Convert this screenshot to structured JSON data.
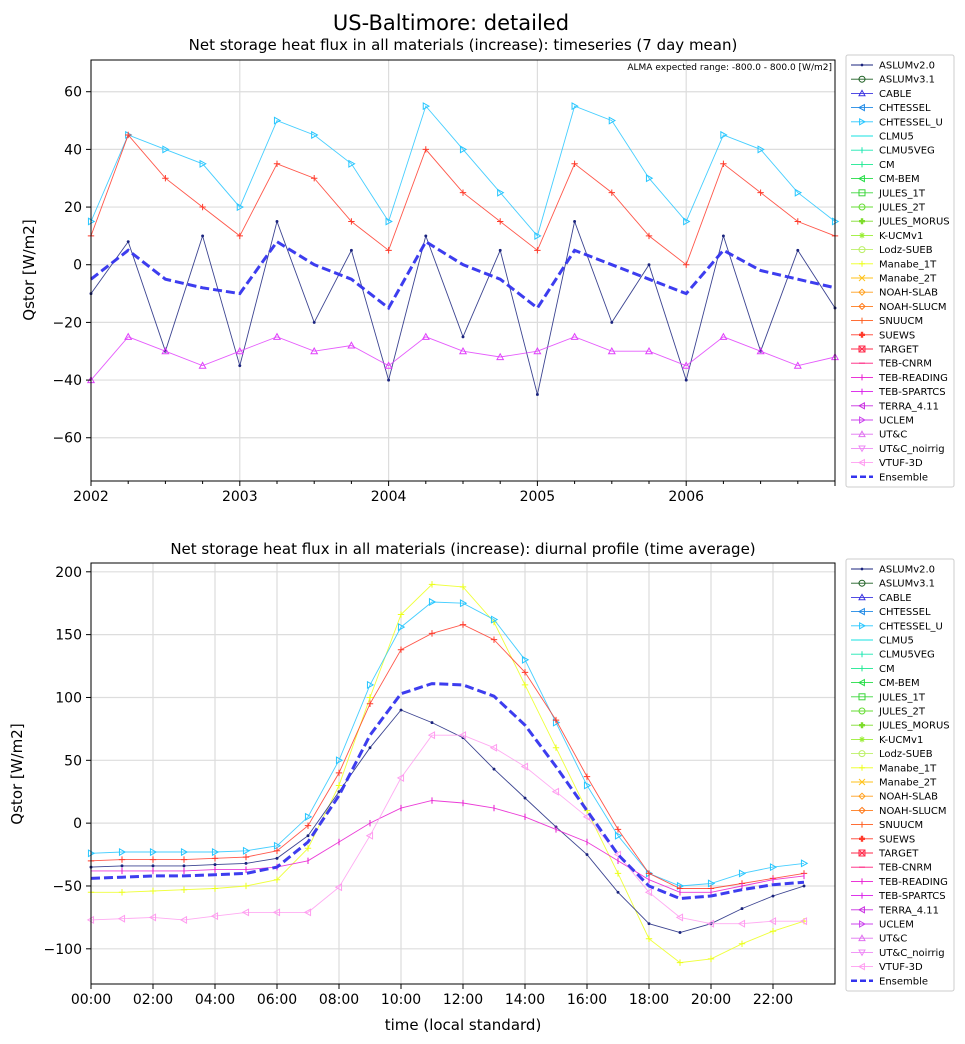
{
  "figure": {
    "title": "US-Baltimore: detailed"
  },
  "chart_data": [
    {
      "type": "line",
      "title": "Net storage heat flux in all materials (increase): timeseries (7 day mean)",
      "annotation": "ALMA expected range: -800.0 - 800.0 [W/m2]",
      "xlabel": "",
      "ylabel": "Qstor [W/m2]",
      "x_ticks": [
        "2002",
        "2003",
        "2004",
        "2005",
        "2006"
      ],
      "xlim": [
        2002.0,
        2007.0
      ],
      "y_ticks": [
        -60,
        -40,
        -20,
        0,
        20,
        40,
        60
      ],
      "ylim": [
        -75,
        71
      ],
      "grid": true,
      "legend_position": "right-outside",
      "note": "approximate envelope readings of dense 7-day mean series",
      "x": [
        2002.0,
        2002.25,
        2002.5,
        2002.75,
        2003.0,
        2003.25,
        2003.5,
        2003.75,
        2004.0,
        2004.25,
        2004.5,
        2004.75,
        2005.0,
        2005.25,
        2005.5,
        2005.75,
        2006.0,
        2006.25,
        2006.5,
        2006.75,
        2007.0
      ],
      "series": [
        {
          "name": "ASLUMv2.0",
          "color": "#1a237e",
          "marker": "dot",
          "values": [
            -10,
            8,
            -30,
            10,
            -35,
            15,
            -20,
            5,
            -40,
            10,
            -25,
            5,
            -45,
            15,
            -20,
            0,
            -40,
            10,
            -30,
            5,
            -15
          ]
        },
        {
          "name": "CHTESSEL_U",
          "color": "#26c6ff",
          "marker": "tri-right",
          "values": [
            15,
            45,
            40,
            35,
            20,
            50,
            45,
            35,
            15,
            55,
            40,
            25,
            10,
            55,
            50,
            30,
            15,
            45,
            40,
            25,
            15
          ]
        },
        {
          "name": "SUEWS",
          "color": "#ff3a2a",
          "marker": "plus",
          "values": [
            10,
            45,
            30,
            20,
            10,
            35,
            30,
            15,
            5,
            40,
            25,
            15,
            5,
            35,
            25,
            10,
            0,
            35,
            25,
            15,
            10
          ]
        },
        {
          "name": "UT&C",
          "color": "#e040fb",
          "marker": "tri-up",
          "values": [
            -40,
            -25,
            -30,
            -35,
            -30,
            -25,
            -30,
            -28,
            -35,
            -25,
            -30,
            -32,
            -30,
            -25,
            -30,
            -30,
            -35,
            -25,
            -30,
            -35,
            -32
          ]
        },
        {
          "name": "Ensemble",
          "color": "#3333ee",
          "marker": "none",
          "values": [
            -5,
            5,
            -5,
            -8,
            -10,
            8,
            0,
            -5,
            -15,
            8,
            0,
            -5,
            -15,
            5,
            0,
            -5,
            -10,
            5,
            -2,
            -5,
            -8
          ]
        }
      ]
    },
    {
      "type": "line",
      "title": "Net storage heat flux in all materials (increase): diurnal profile (time average)",
      "xlabel": "time (local standard)",
      "ylabel": "Qstor [W/m2]",
      "x_ticks": [
        "00:00",
        "02:00",
        "04:00",
        "06:00",
        "08:00",
        "10:00",
        "12:00",
        "14:00",
        "16:00",
        "18:00",
        "20:00",
        "22:00"
      ],
      "xlim": [
        0,
        24
      ],
      "y_ticks": [
        -100,
        -50,
        0,
        50,
        100,
        150,
        200
      ],
      "ylim": [
        -128,
        207
      ],
      "grid": true,
      "legend_position": "right-outside",
      "x": [
        0,
        1,
        2,
        3,
        4,
        5,
        6,
        7,
        8,
        9,
        10,
        11,
        12,
        13,
        14,
        15,
        16,
        17,
        18,
        19,
        20,
        21,
        22,
        23
      ],
      "series": [
        {
          "name": "Manabe_1T",
          "color": "#ecff1a",
          "marker": "plus",
          "values": [
            -55,
            -55,
            -54,
            -53,
            -52,
            -50,
            -45,
            -20,
            30,
            100,
            166,
            190,
            188,
            160,
            110,
            60,
            10,
            -40,
            -92,
            -111,
            -108,
            -96,
            -86,
            -78
          ]
        },
        {
          "name": "CHTESSEL_U",
          "color": "#26c6ff",
          "marker": "tri-right",
          "values": [
            -24,
            -23,
            -23,
            -23,
            -23,
            -22,
            -18,
            5,
            50,
            110,
            156,
            176,
            175,
            162,
            130,
            80,
            30,
            -10,
            -40,
            -50,
            -48,
            -40,
            -35,
            -32
          ]
        },
        {
          "name": "SUEWS",
          "color": "#ff3a2a",
          "marker": "plus",
          "values": [
            -30,
            -29,
            -29,
            -29,
            -28,
            -27,
            -22,
            -2,
            40,
            95,
            138,
            151,
            158,
            146,
            120,
            82,
            37,
            -5,
            -40,
            -52,
            -52,
            -48,
            -44,
            -40
          ]
        },
        {
          "name": "ASLUMv2.0",
          "color": "#1a237e",
          "marker": "dot",
          "values": [
            -35,
            -34,
            -34,
            -34,
            -33,
            -32,
            -28,
            -10,
            25,
            60,
            90,
            80,
            68,
            43,
            20,
            -3,
            -25,
            -55,
            -80,
            -87,
            -80,
            -68,
            -58,
            -50
          ]
        },
        {
          "name": "TEB-READING",
          "color": "#e81ad0",
          "marker": "vline",
          "values": [
            -38,
            -38,
            -38,
            -38,
            -37,
            -37,
            -35,
            -30,
            -15,
            0,
            12,
            18,
            16,
            12,
            5,
            -5,
            -15,
            -30,
            -45,
            -55,
            -55,
            -50,
            -45,
            -42
          ]
        },
        {
          "name": "VTUF-3D",
          "color": "#ff9cf0",
          "marker": "tri-left",
          "values": [
            -77,
            -76,
            -75,
            -77,
            -74,
            -71,
            -71,
            -71,
            -51,
            -10,
            36,
            70,
            70,
            60,
            45,
            25,
            5,
            -25,
            -55,
            -75,
            -80,
            -80,
            -78,
            -78
          ]
        },
        {
          "name": "Ensemble",
          "color": "#3333ee",
          "marker": "none",
          "values": [
            -44,
            -43,
            -42,
            -42,
            -41,
            -40,
            -35,
            -15,
            22,
            70,
            103,
            111,
            110,
            101,
            78,
            45,
            10,
            -25,
            -50,
            -60,
            -58,
            -53,
            -49,
            -47
          ]
        }
      ]
    }
  ],
  "legend": [
    {
      "name": "ASLUMv2.0",
      "color": "#1a237e",
      "marker": "dot"
    },
    {
      "name": "ASLUMv3.1",
      "color": "#1b5e20",
      "marker": "circle"
    },
    {
      "name": "CABLE",
      "color": "#3a33e0",
      "marker": "tri-up"
    },
    {
      "name": "CHTESSEL",
      "color": "#1e88e5",
      "marker": "tri-left"
    },
    {
      "name": "CHTESSEL_U",
      "color": "#26c6ff",
      "marker": "tri-right"
    },
    {
      "name": "CLMU5",
      "color": "#16e0e0",
      "marker": "hline"
    },
    {
      "name": "CLMU5VEG",
      "color": "#18e8b0",
      "marker": "vline"
    },
    {
      "name": "CM",
      "color": "#19e890",
      "marker": "vline"
    },
    {
      "name": "CM-BEM",
      "color": "#22dd44",
      "marker": "tri-left"
    },
    {
      "name": "JULES_1T",
      "color": "#3ad63a",
      "marker": "square"
    },
    {
      "name": "JULES_2T",
      "color": "#66dd33",
      "marker": "circle"
    },
    {
      "name": "JULES_MORUS",
      "color": "#7ddc2a",
      "marker": "plusbold"
    },
    {
      "name": "K-UCMv1",
      "color": "#99ee33",
      "marker": "star"
    },
    {
      "name": "Lodz-SUEB",
      "color": "#bbf066",
      "marker": "circle"
    },
    {
      "name": "Manabe_1T",
      "color": "#ecff1a",
      "marker": "plus"
    },
    {
      "name": "Manabe_2T",
      "color": "#ffc21a",
      "marker": "x"
    },
    {
      "name": "NOAH-SLAB",
      "color": "#ff9e1a",
      "marker": "diamond"
    },
    {
      "name": "NOAH-SLUCM",
      "color": "#ff7a1a",
      "marker": "diamond"
    },
    {
      "name": "SNUUCM",
      "color": "#ff5a1a",
      "marker": "vline"
    },
    {
      "name": "SUEWS",
      "color": "#ff3a2a",
      "marker": "plusbold"
    },
    {
      "name": "TARGET",
      "color": "#ff2a4a",
      "marker": "squarex"
    },
    {
      "name": "TEB-CNRM",
      "color": "#ff1a7a",
      "marker": "hline"
    },
    {
      "name": "TEB-READING",
      "color": "#e81ad0",
      "marker": "vline"
    },
    {
      "name": "TEB-SPARTCS",
      "color": "#d81ae8",
      "marker": "vline"
    },
    {
      "name": "TERRA_4.11",
      "color": "#c82be0",
      "marker": "tri-left"
    },
    {
      "name": "UCLEM",
      "color": "#cc44ee",
      "marker": "tri-right"
    },
    {
      "name": "UT&C",
      "color": "#e070f0",
      "marker": "tri-up"
    },
    {
      "name": "UT&C_noirrig",
      "color": "#ee88f5",
      "marker": "tri-down"
    },
    {
      "name": "VTUF-3D",
      "color": "#ff9cf0",
      "marker": "tri-left"
    },
    {
      "name": "Ensemble",
      "color": "#3333ee",
      "marker": "dash"
    }
  ]
}
